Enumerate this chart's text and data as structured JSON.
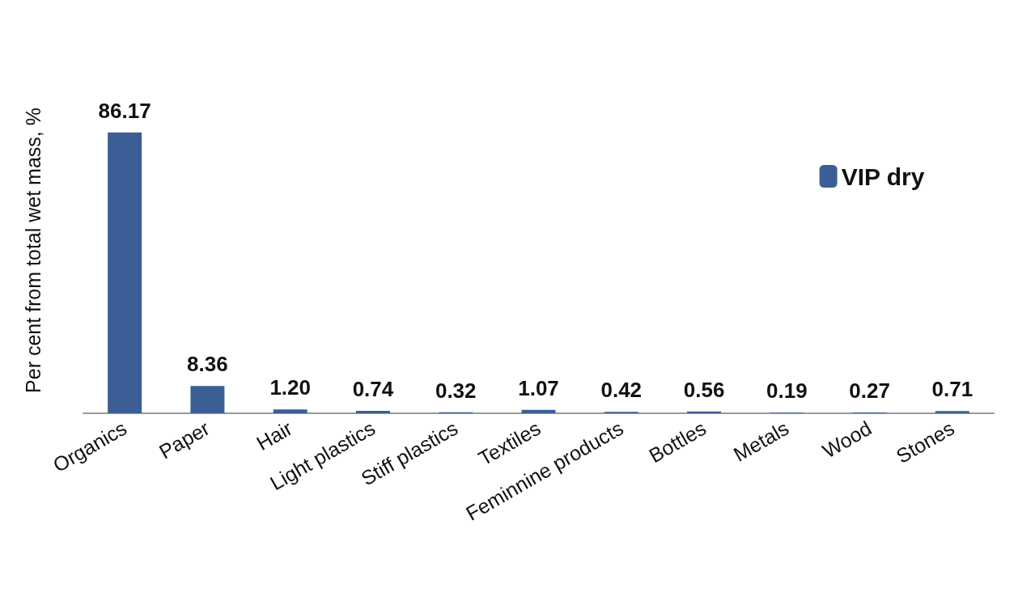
{
  "chart_data": {
    "type": "bar",
    "ylabel": "Per cent from total wet mass, %",
    "categories": [
      "Organics",
      "Paper",
      "Hair",
      "Light plastics",
      "Stiff plastics",
      "Textiles",
      "Feminnine products",
      "Bottles",
      "Metals",
      "Wood",
      "Stones"
    ],
    "series": [
      {
        "name": "VIP dry",
        "color": "#3b5f95",
        "values": [
          86.17,
          8.36,
          1.2,
          0.74,
          0.32,
          1.07,
          0.42,
          0.56,
          0.19,
          0.27,
          0.71
        ],
        "value_labels": [
          "86.17",
          "8.36",
          "1.20",
          "0.74",
          "0.32",
          "1.07",
          "0.42",
          "0.56",
          "0.19",
          "0.27",
          "0.71"
        ]
      }
    ],
    "legend": "right",
    "grid": false
  }
}
